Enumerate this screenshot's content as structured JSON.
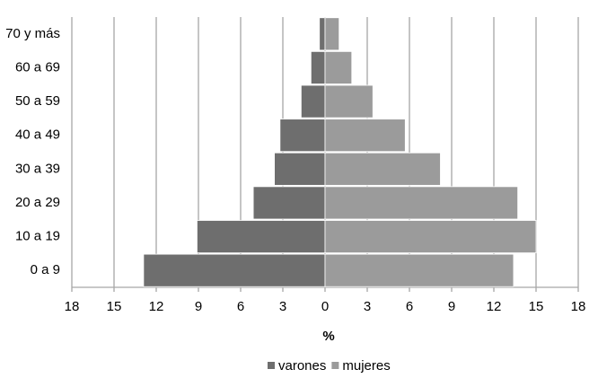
{
  "chart_data": {
    "type": "pyramid",
    "xlabel": "%",
    "categories": [
      "0 a 9",
      "10 a 19",
      "20 a 29",
      "30 a 39",
      "40 a 49",
      "50 a 59",
      "60 a 69",
      "70 y más"
    ],
    "series": [
      {
        "name": "varones",
        "color": "#6e6e6e",
        "values": [
          -12.9,
          -9.1,
          -5.1,
          -3.6,
          -3.2,
          -1.7,
          -1.0,
          -0.4
        ]
      },
      {
        "name": "mujeres",
        "color": "#9b9b9b",
        "values": [
          13.4,
          15.0,
          13.7,
          8.2,
          5.7,
          3.4,
          1.9,
          1.0
        ]
      }
    ],
    "xlim": [
      -18,
      18
    ],
    "xticks": [
      {
        "value": -18,
        "label": "18"
      },
      {
        "value": -15,
        "label": "15"
      },
      {
        "value": -12,
        "label": "12"
      },
      {
        "value": -9,
        "label": "9"
      },
      {
        "value": -6,
        "label": "6"
      },
      {
        "value": -3,
        "label": "3"
      },
      0,
      3,
      6,
      9,
      12,
      15,
      18
    ],
    "grid": true,
    "legend": "bottom"
  }
}
